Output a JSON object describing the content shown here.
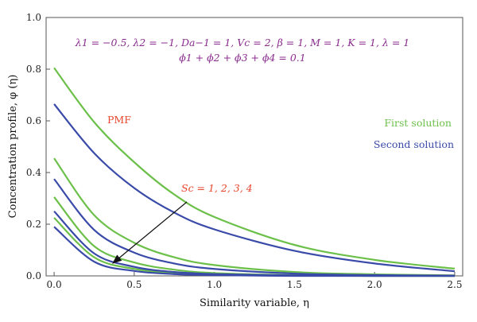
{
  "chart_data": {
    "type": "line",
    "xlabel": "Similarity variable, η",
    "ylabel": "Concentration profile, φ (η)",
    "xlim": [
      -0.05,
      2.55
    ],
    "ylim": [
      0,
      1.0
    ],
    "x_ticks": [
      "0.0",
      "0.5",
      "1.0",
      "1.5",
      "2.0",
      "2.5"
    ],
    "y_ticks": [
      "0.0",
      "0.2",
      "0.4",
      "0.6",
      "0.8",
      "1.0"
    ],
    "grid": false,
    "colors": {
      "first": "#6cc04a",
      "second": "#3a4aa8",
      "pmf": "#e8452c",
      "params": "#8b2c8f"
    },
    "annotations": {
      "params_line1": "λ1 = −0.5, λ2 = −1, Da−1 = 1, Vc = 2, β = 1, M = 1, K = 1, λ = 1",
      "params_line2": "ϕ1 + ϕ2 + ϕ3 + ϕ4 = 0.1",
      "pmf": "PMF",
      "sc": "Sc = 1, 2, 3, 4"
    },
    "legend": {
      "first": "First solution",
      "second": "Second solution",
      "placement": "right"
    },
    "series": [
      {
        "group": "first",
        "x": [
          0,
          0.25,
          0.5,
          0.75,
          1.0,
          1.5,
          2.0,
          2.5
        ],
        "values": [
          0.805,
          0.595,
          0.44,
          0.315,
          0.228,
          0.12,
          0.062,
          0.028
        ]
      },
      {
        "group": "first",
        "x": [
          0,
          0.25,
          0.5,
          0.75,
          1.0,
          1.5,
          2.0,
          2.5
        ],
        "values": [
          0.455,
          0.235,
          0.128,
          0.072,
          0.042,
          0.015,
          0.006,
          0.002
        ]
      },
      {
        "group": "first",
        "x": [
          0,
          0.25,
          0.5,
          0.75,
          1.0,
          1.5,
          2.0,
          2.5
        ],
        "values": [
          0.305,
          0.115,
          0.052,
          0.024,
          0.011,
          0.003,
          0.001,
          0.0
        ]
      },
      {
        "group": "first",
        "x": [
          0,
          0.25,
          0.5,
          0.75,
          1.0,
          1.5,
          2.0,
          2.5
        ],
        "values": [
          0.225,
          0.072,
          0.027,
          0.011,
          0.005,
          0.001,
          0.0,
          0.0
        ]
      },
      {
        "group": "second",
        "x": [
          0,
          0.25,
          0.5,
          0.75,
          1.0,
          1.5,
          2.0,
          2.5
        ],
        "values": [
          0.665,
          0.475,
          0.34,
          0.245,
          0.18,
          0.097,
          0.048,
          0.018
        ]
      },
      {
        "group": "second",
        "x": [
          0,
          0.25,
          0.5,
          0.75,
          1.0,
          1.5,
          2.0,
          2.5
        ],
        "values": [
          0.375,
          0.178,
          0.09,
          0.048,
          0.027,
          0.009,
          0.003,
          0.001
        ]
      },
      {
        "group": "second",
        "x": [
          0,
          0.25,
          0.5,
          0.75,
          1.0,
          1.5,
          2.0,
          2.5
        ],
        "values": [
          0.25,
          0.087,
          0.035,
          0.015,
          0.007,
          0.002,
          0.0,
          0.0
        ]
      },
      {
        "group": "second",
        "x": [
          0,
          0.25,
          0.5,
          0.75,
          1.0,
          1.5,
          2.0,
          2.5
        ],
        "values": [
          0.19,
          0.055,
          0.019,
          0.007,
          0.003,
          0.0,
          0.0,
          0.0
        ]
      }
    ]
  }
}
